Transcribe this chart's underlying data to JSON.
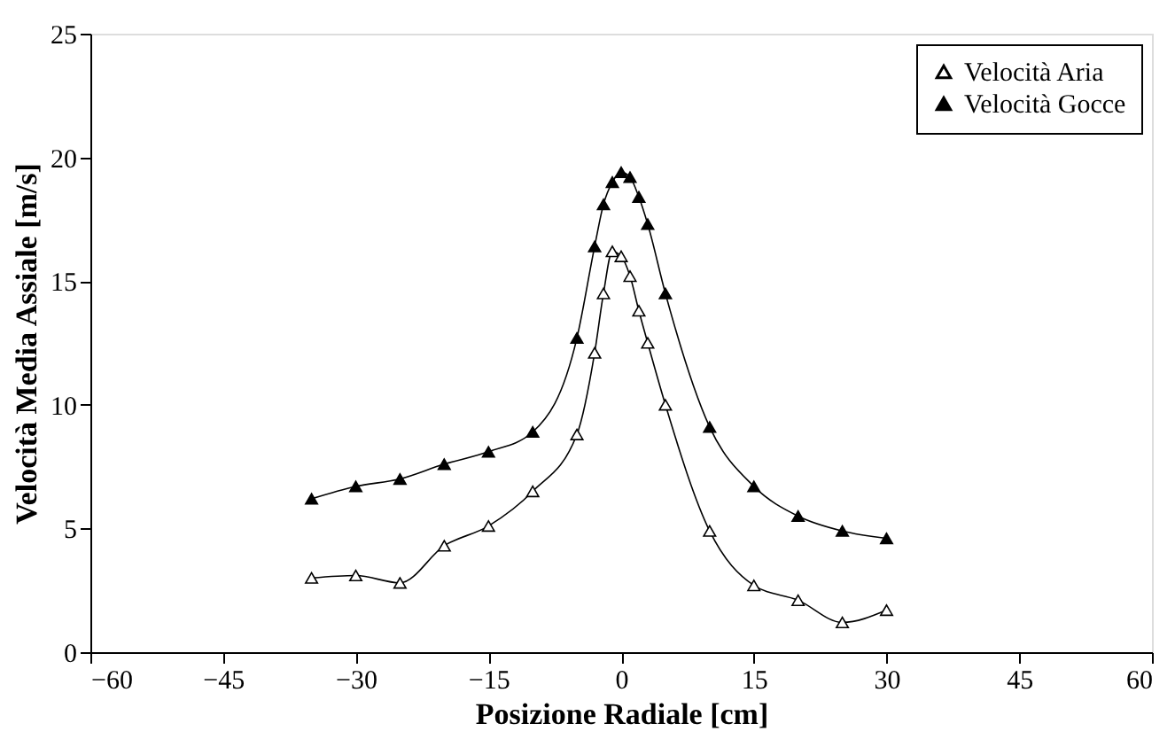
{
  "chart_data": {
    "type": "line",
    "xlabel": "Posizione Radiale [cm]",
    "ylabel": "Velocità Media Assiale [m/s]",
    "xlim": [
      -60,
      60
    ],
    "xticks": [
      -60,
      -45,
      -30,
      -15,
      0,
      15,
      30,
      45,
      60
    ],
    "ylim": [
      0,
      25
    ],
    "yticks": [
      0,
      5,
      10,
      15,
      20,
      25
    ],
    "grid": false,
    "legend": "top right",
    "marker": "triangle",
    "line_style": "solid",
    "series": [
      {
        "name": "Velocità Aria",
        "color": "#000000",
        "x": [
          -35,
          -30,
          -25,
          -20,
          -15,
          -10,
          -5,
          -3,
          -2,
          -1,
          0,
          1,
          2,
          3,
          5,
          10,
          15,
          20,
          25,
          30
        ],
        "values": [
          3.0,
          3.1,
          2.8,
          4.3,
          5.1,
          6.5,
          8.8,
          12.1,
          14.5,
          16.2,
          16.0,
          15.2,
          13.8,
          12.5,
          10.0,
          4.9,
          2.7,
          2.1,
          1.2,
          1.7
        ]
      },
      {
        "name": "Velocità Gocce",
        "color": "#000000",
        "x": [
          -35,
          -30,
          -25,
          -20,
          -15,
          -10,
          -5,
          -3,
          -2,
          -1,
          0,
          1,
          2,
          3,
          5,
          10,
          15,
          20,
          25,
          30
        ],
        "values": [
          6.2,
          6.7,
          7.0,
          7.6,
          8.1,
          8.9,
          12.7,
          16.4,
          18.1,
          19.0,
          19.4,
          19.2,
          18.4,
          17.3,
          14.5,
          9.1,
          6.7,
          5.5,
          4.9,
          4.6
        ]
      }
    ]
  }
}
